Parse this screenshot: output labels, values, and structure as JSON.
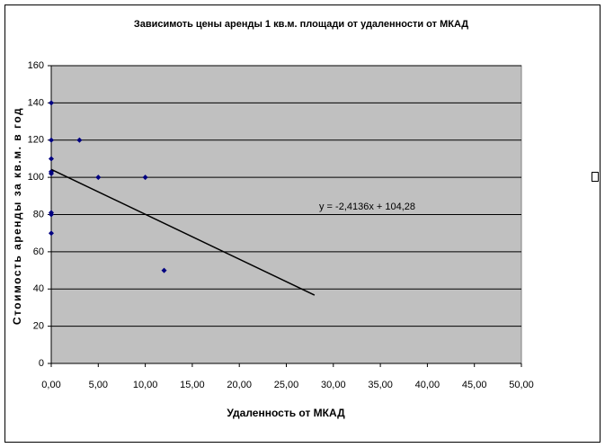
{
  "chart_data": {
    "type": "scatter",
    "title": "Зависимоть цены аренды 1 кв.м. площади от удаленности от МКАД",
    "x_label": "Удаленность от МКАД",
    "y_label": "Стоимость аренды за кв.м. в год",
    "x": [
      0,
      0,
      0,
      0,
      0,
      0,
      0,
      0,
      3,
      5,
      10,
      12
    ],
    "values": [
      140,
      120,
      110,
      103,
      102,
      81,
      80,
      70,
      120,
      100,
      100,
      50
    ],
    "color": "#000080",
    "xlim": [
      0,
      50
    ],
    "ylim": [
      0,
      160
    ],
    "xticks": [
      {
        "value": 0,
        "label": "0,00"
      },
      {
        "value": 5,
        "label": "5,00"
      },
      {
        "value": 10,
        "label": "10,00"
      },
      {
        "value": 15,
        "label": "15,00"
      },
      {
        "value": 20,
        "label": "20,00"
      },
      {
        "value": 25,
        "label": "25,00"
      },
      {
        "value": 30,
        "label": "30,00"
      },
      {
        "value": 35,
        "label": "35,00"
      },
      {
        "value": 40,
        "label": "40,00"
      },
      {
        "value": 45,
        "label": "45,00"
      },
      {
        "value": 50,
        "label": "50,00"
      }
    ],
    "yticks": [
      0,
      20,
      40,
      60,
      80,
      100,
      120,
      140,
      160
    ],
    "grid": true,
    "trendline": {
      "label": "y = -2,4136x + 104,28",
      "slope": -2.4136,
      "intercept": 104.28,
      "x_end": 28
    }
  }
}
